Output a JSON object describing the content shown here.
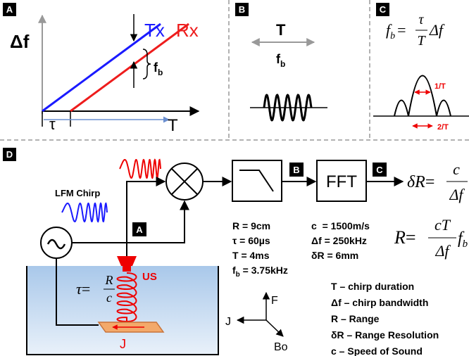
{
  "panel_a": {
    "label": "A",
    "y_axis": "Δf",
    "tx": "Tx",
    "rx": "Rx",
    "beat": {
      "symbol": "f",
      "sub": "b"
    },
    "delay": "τ",
    "x_axis": "T"
  },
  "panel_b": {
    "label": "B",
    "period": "T",
    "beat": {
      "symbol": "f",
      "sub": "b"
    }
  },
  "panel_c": {
    "label": "C",
    "formula": {
      "lhs": "f",
      "lhs_sub": "b",
      "eq": "=",
      "num": "τ",
      "den": "T",
      "tail": "Δf"
    },
    "main_lobe": "1/T",
    "null_width": "2/T"
  },
  "panel_d": {
    "label": "D",
    "chirp": "LFM Chirp",
    "tag_a": "A",
    "tag_b": "B",
    "tag_c": "C",
    "fft": "FFT",
    "resolution_formula": {
      "lhs": "δR",
      "eq": "=",
      "num": "c",
      "den": "Δf"
    },
    "range_formula": {
      "lhs": "R",
      "eq": "=",
      "num": "cT",
      "den": "Δf",
      "tail": "f",
      "tail_sub": "b"
    },
    "params_left": [
      "R = 9cm",
      "τ = 60µs",
      "T = 4ms"
    ],
    "param_fb": {
      "symbol": "f",
      "sub": "b",
      "rest": " = 3.75kHz"
    },
    "params_right": [
      "c  = 1500m/s",
      "Δf = 250kHz",
      "δR = 6mm"
    ],
    "transducer": "US",
    "delay_formula": {
      "lhs": "τ",
      "eq": "=",
      "num": "R",
      "den": "c"
    },
    "sample": "J",
    "axes": {
      "up": "F",
      "left": "J",
      "down": "Bo"
    },
    "legend": [
      "T – chirp duration",
      "Δf – chirp bandwidth",
      "R – Range",
      "δR – Range Resolution",
      "c – Speed of Sound"
    ]
  }
}
